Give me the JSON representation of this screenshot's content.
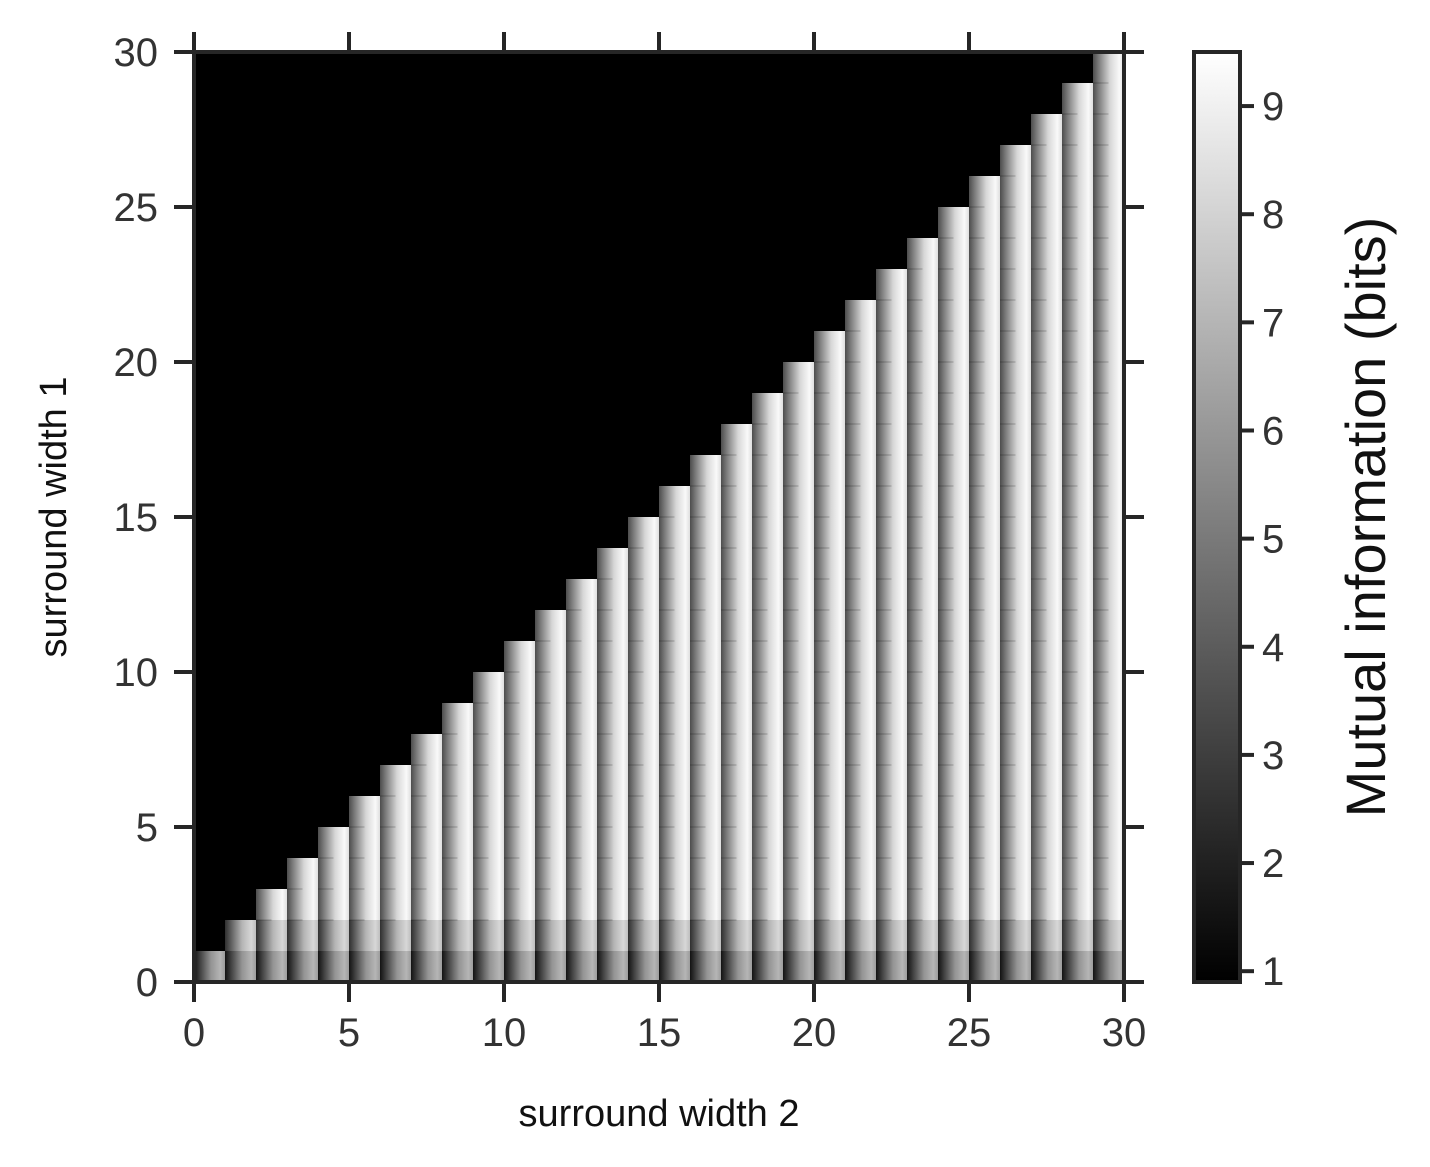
{
  "chart_data": {
    "type": "heatmap",
    "title": "",
    "xlabel": "surround width 2",
    "ylabel": "surround width 1",
    "xlim": [
      0,
      30
    ],
    "ylim": [
      0,
      30
    ],
    "xticks": [
      0,
      5,
      10,
      15,
      20,
      25,
      30
    ],
    "yticks": [
      0,
      5,
      10,
      15,
      20,
      25,
      30
    ],
    "colormap": "gray",
    "colorbar": {
      "label": "Mutual information (bits)",
      "range": [
        0.9,
        9.5
      ],
      "ticks": [
        1,
        2,
        3,
        4,
        5,
        6,
        7,
        8,
        9
      ]
    },
    "structure": "Values defined only where surround width 1 <= surround width 2 (lower-right triangle); region where surround width 1 > surround width 2 is at the colormap minimum (black). Within each unit column, intensity ramps from darker (left) to brighter (right); row 0 is darkest.",
    "column_profile": {
      "left_edge_value": 3.5,
      "peak_value": 9.3,
      "row0_left_value": 1.5,
      "row0_peak_value": 7.0
    }
  }
}
